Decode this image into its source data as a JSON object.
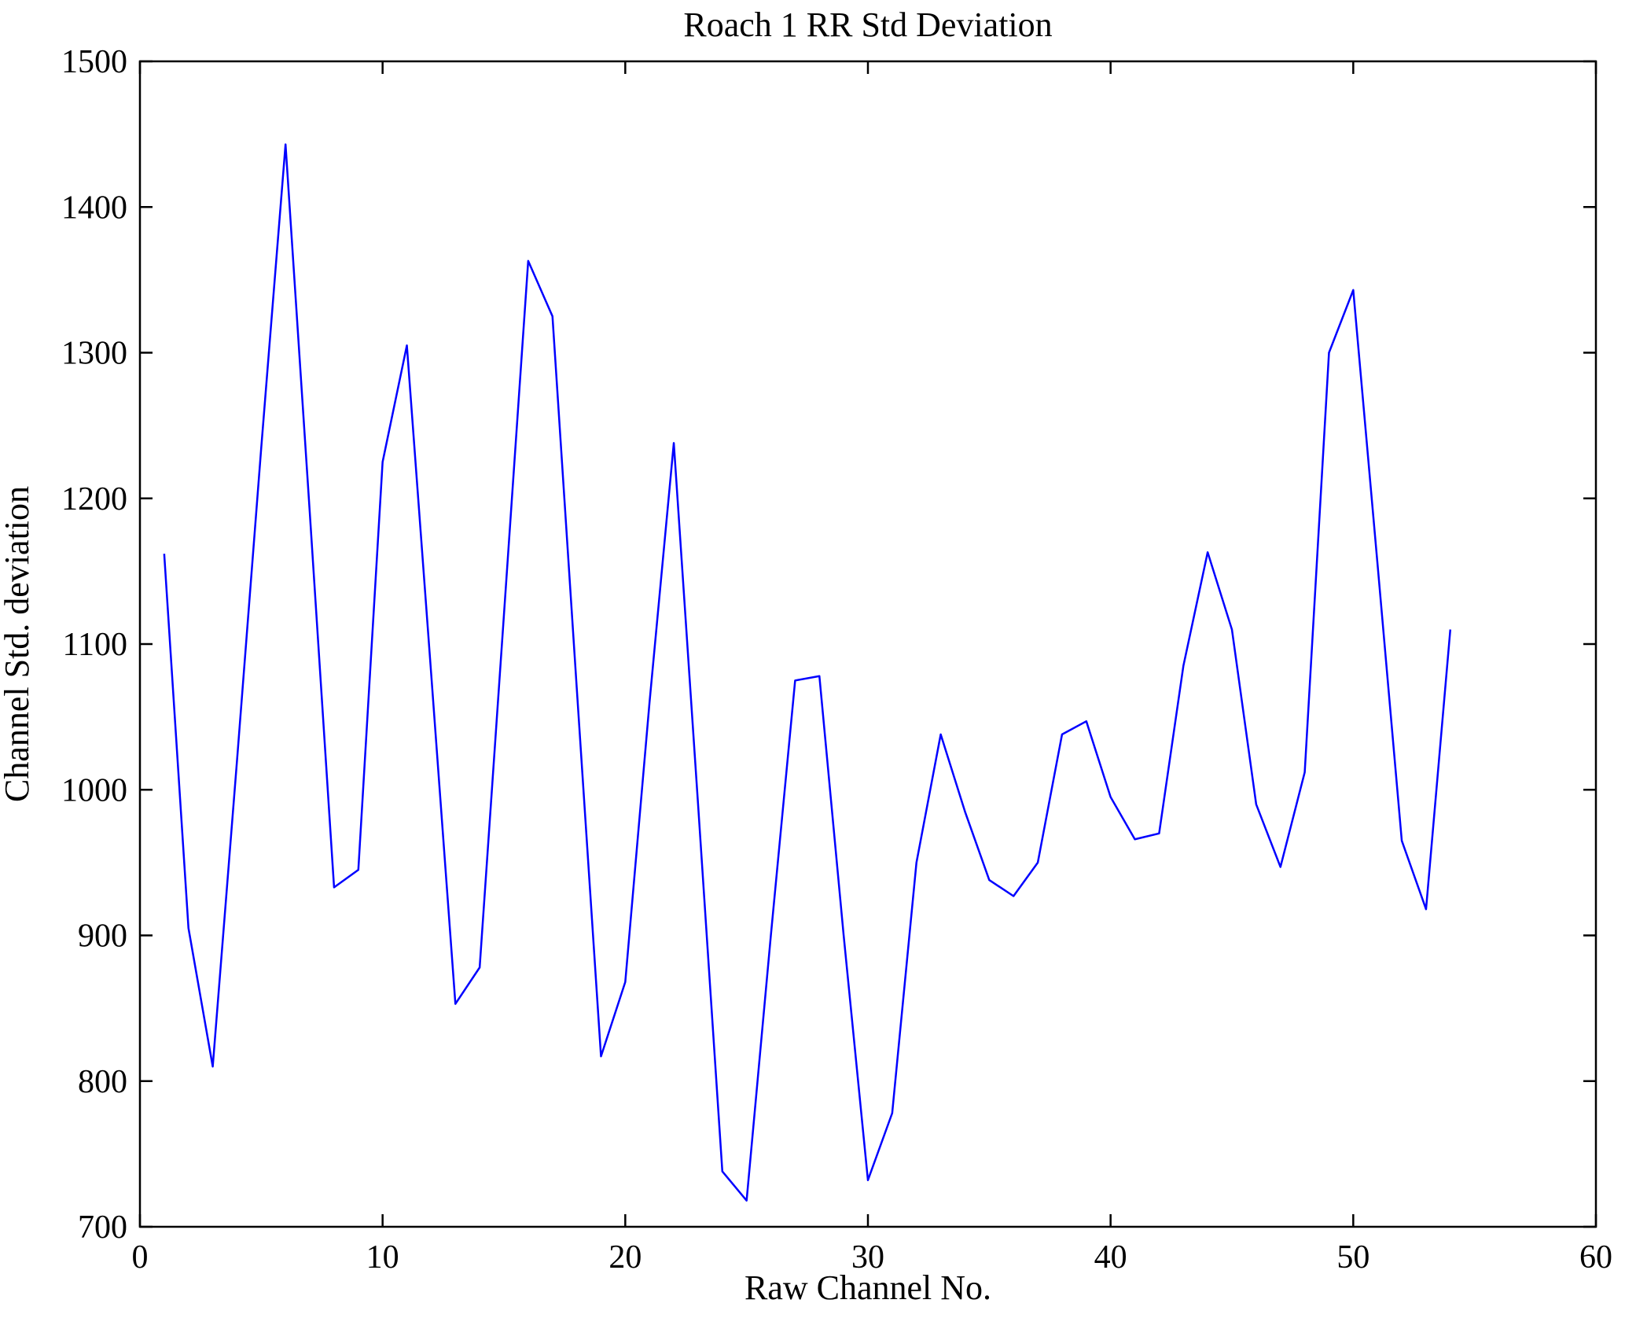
{
  "chart_data": {
    "type": "line",
    "title": "Roach 1 RR Std Deviation",
    "xlabel": "Raw Channel No.",
    "ylabel": "Channel Std. deviation",
    "xlim": [
      0,
      60
    ],
    "ylim": [
      700,
      1500
    ],
    "xticks": [
      0,
      10,
      20,
      30,
      40,
      50,
      60
    ],
    "yticks": [
      700,
      800,
      900,
      1000,
      1100,
      1200,
      1300,
      1400,
      1500
    ],
    "grid": false,
    "legend": null,
    "line_color": "#0000ff",
    "axis_color": "#000000",
    "x": [
      1,
      2,
      3,
      4,
      5,
      6,
      7,
      8,
      9,
      10,
      11,
      12,
      13,
      14,
      15,
      16,
      17,
      18,
      19,
      20,
      21,
      22,
      23,
      24,
      25,
      26,
      27,
      28,
      29,
      30,
      31,
      32,
      33,
      34,
      35,
      36,
      37,
      38,
      39,
      40,
      41,
      42,
      43,
      44,
      45,
      46,
      47,
      48,
      49,
      50,
      51,
      52,
      53,
      54
    ],
    "values": [
      1162,
      905,
      810,
      1020,
      1235,
      1443,
      1190,
      933,
      945,
      1225,
      1305,
      1080,
      853,
      878,
      1120,
      1363,
      1325,
      1070,
      817,
      868,
      1060,
      1238,
      990,
      738,
      718,
      900,
      1075,
      1078,
      900,
      732,
      778,
      950,
      1038,
      985,
      938,
      927,
      950,
      1038,
      1047,
      995,
      966,
      970,
      1085,
      1163,
      1110,
      990,
      947,
      1012,
      1300,
      1343,
      1155,
      965,
      918,
      1110
    ]
  }
}
